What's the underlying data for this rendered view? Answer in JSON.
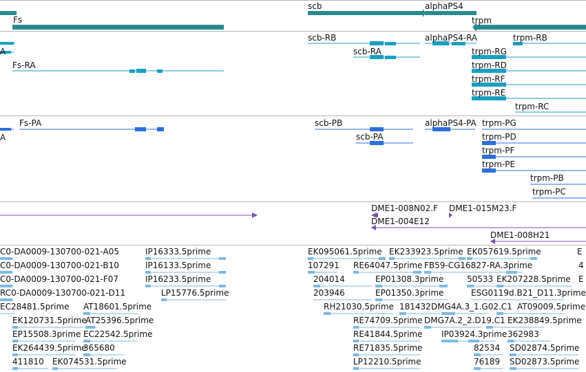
{
  "colors": {
    "gene": "#2a8b8f",
    "transcript": "#1b9fbf",
    "protein": "#2d6fd8",
    "clone": "#7b53a8",
    "est": "#7db9e0",
    "divider": "#b4b4b4"
  },
  "genes": [
    {
      "label": "Fs"
    },
    {
      "label": "scb"
    },
    {
      "label": "alphaPS4"
    },
    {
      "label": "trpm"
    }
  ],
  "transcripts": [
    {
      "label": "Fs-RA"
    },
    {
      "label": "scb-RB"
    },
    {
      "label": "scb-RA"
    },
    {
      "label": "alphaPS4-RA"
    },
    {
      "label": "trpm-RB"
    },
    {
      "label": "trpm-RG"
    },
    {
      "label": "trpm-RD"
    },
    {
      "label": "trpm-RF"
    },
    {
      "label": "trpm-RE"
    },
    {
      "label": "trpm-RC"
    },
    {
      "label": "A"
    }
  ],
  "proteins": [
    {
      "label": "Fs-PA"
    },
    {
      "label": "scb-PB"
    },
    {
      "label": "scb-PA"
    },
    {
      "label": "alphaPS4-PA"
    },
    {
      "label": "trpm-PG"
    },
    {
      "label": "trpm-PD"
    },
    {
      "label": "trpm-PF"
    },
    {
      "label": "trpm-PE"
    },
    {
      "label": "trpm-PB"
    },
    {
      "label": "trpm-PC"
    },
    {
      "label": "A"
    }
  ],
  "clones": [
    {
      "label": "DME1-008N02.F"
    },
    {
      "label": "DME1-015M23.F"
    },
    {
      "label": "DME1-004E12"
    },
    {
      "label": "DME1-008H21"
    }
  ],
  "ests": [
    {
      "label": "C0-DA0009-130700-021-A05"
    },
    {
      "label": "IP16333.5prime"
    },
    {
      "label": "EK095061.5prime"
    },
    {
      "label": "EK233923.5prime"
    },
    {
      "label": "EK057619.5prime"
    },
    {
      "label": "E"
    },
    {
      "label": "C0-DA0009-130700-021-B10"
    },
    {
      "label": "IP16133.5prime"
    },
    {
      "label": "107291"
    },
    {
      "label": "RE64047.5prime"
    },
    {
      "label": "FB59-CG16827-RA.3prime"
    },
    {
      "label": "4"
    },
    {
      "label": "C0-DA0009-130700-021-F07"
    },
    {
      "label": "IP16233.5prime"
    },
    {
      "label": "204014"
    },
    {
      "label": "EP01308.3prime"
    },
    {
      "label": "50533"
    },
    {
      "label": "EK207228.5prime"
    },
    {
      "label": "E"
    },
    {
      "label": "RC0-DA0009-130700-021-D11"
    },
    {
      "label": "LP15776.5prime"
    },
    {
      "label": "203946"
    },
    {
      "label": "EP01350.3prime"
    },
    {
      "label": "ESG0119d.B21_D11.3prime"
    },
    {
      "label": "EC28481.5prime"
    },
    {
      "label": "AT18601.5prime"
    },
    {
      "label": "RH21030.5prime"
    },
    {
      "label": "181432"
    },
    {
      "label": "DMG4A.3_1.G02.C1"
    },
    {
      "label": "AT09009.5prime"
    },
    {
      "label": "EK120731.5prime"
    },
    {
      "label": "AT25396.5prime"
    },
    {
      "label": "RE74709.5prime"
    },
    {
      "label": "DMG7A.2_2.D19.C1"
    },
    {
      "label": "EK238849.5prime"
    },
    {
      "label": "EP15508.3prime"
    },
    {
      "label": "EC22542.5prime"
    },
    {
      "label": "RE41844.5prime"
    },
    {
      "label": "IP03924.3prime"
    },
    {
      "label": "362983"
    },
    {
      "label": "EK264439.5prime"
    },
    {
      "label": "365680"
    },
    {
      "label": "RE71835.5prime"
    },
    {
      "label": "82534"
    },
    {
      "label": "SD02874.5prime"
    },
    {
      "label": "411810"
    },
    {
      "label": "EK074531.5prime"
    },
    {
      "label": "LP12210.5prime"
    },
    {
      "label": "76189"
    },
    {
      "label": "SD02873.5prime"
    }
  ]
}
